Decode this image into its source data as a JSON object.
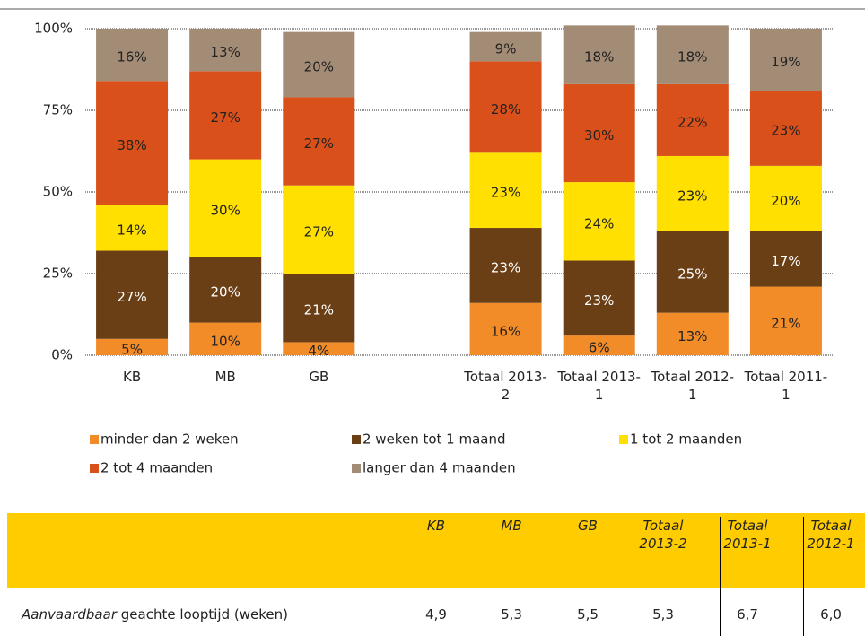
{
  "chart_data": {
    "type": "stacked_bar",
    "categories": [
      "KB",
      "MB",
      "GB",
      null,
      "Totaal 2013-2",
      "Totaal 2013-1",
      "Totaal 2012-1",
      "Totaal 2011-1"
    ],
    "series": [
      {
        "name": "minder dan 2 weken",
        "color": "#f28c28",
        "label_color": "#222222",
        "values": [
          5,
          10,
          4,
          null,
          16,
          6,
          13,
          21
        ],
        "value_labels": [
          "5%",
          "10%",
          "4%",
          null,
          "16%",
          "6%",
          "13%",
          "21%"
        ]
      },
      {
        "name": "2 weken tot 1 maand",
        "color": "#6b3f16",
        "label_color": "#ffffff",
        "values": [
          27,
          20,
          21,
          null,
          23,
          23,
          25,
          17
        ],
        "value_labels": [
          "27%",
          "20%",
          "21%",
          null,
          "23%",
          "23%",
          "25%",
          "17%"
        ]
      },
      {
        "name": "1 tot 2 maanden",
        "color": "#ffe000",
        "label_color": "#222222",
        "values": [
          14,
          30,
          27,
          null,
          23,
          24,
          23,
          20
        ],
        "value_labels": [
          "14%",
          "30%",
          "27%",
          null,
          "23%",
          "24%",
          "23%",
          "20%"
        ]
      },
      {
        "name": "2 tot 4 maanden",
        "color": "#d9501a",
        "label_color": "#222222",
        "values": [
          38,
          27,
          27,
          null,
          28,
          30,
          22,
          23
        ],
        "value_labels": [
          "38%",
          "27%",
          "27%",
          null,
          "28%",
          "30%",
          "22%",
          "23%"
        ]
      },
      {
        "name": "langer dan 4 maanden",
        "color": "#a38c76",
        "label_color": "#222222",
        "values": [
          16,
          13,
          20,
          null,
          9,
          18,
          18,
          19
        ],
        "value_labels": [
          "16%",
          "13%",
          "20%",
          null,
          "9%",
          "18%",
          "18%",
          "19%"
        ]
      }
    ],
    "ylim": [
      0,
      100
    ],
    "yticks": [
      {
        "value": 0,
        "label": "0%"
      },
      {
        "value": 25,
        "label": "25%"
      },
      {
        "value": 50,
        "label": "50%"
      },
      {
        "value": 75,
        "label": "75%"
      },
      {
        "value": 100,
        "label": "100%"
      }
    ],
    "grid": true,
    "legend": "bottom"
  },
  "table": {
    "columns": [
      "KB",
      "MB",
      "GB",
      "Totaal 2013-2",
      "Totaal 2013-1",
      "Totaal 2012-1"
    ],
    "rows": [
      {
        "label_italic": "Aanvaardbaar",
        "label": "geachte looptijd (weken)",
        "values": [
          "4,9",
          "5,3",
          "5,5",
          "5,3",
          "6,7",
          "6,0"
        ]
      }
    ]
  }
}
